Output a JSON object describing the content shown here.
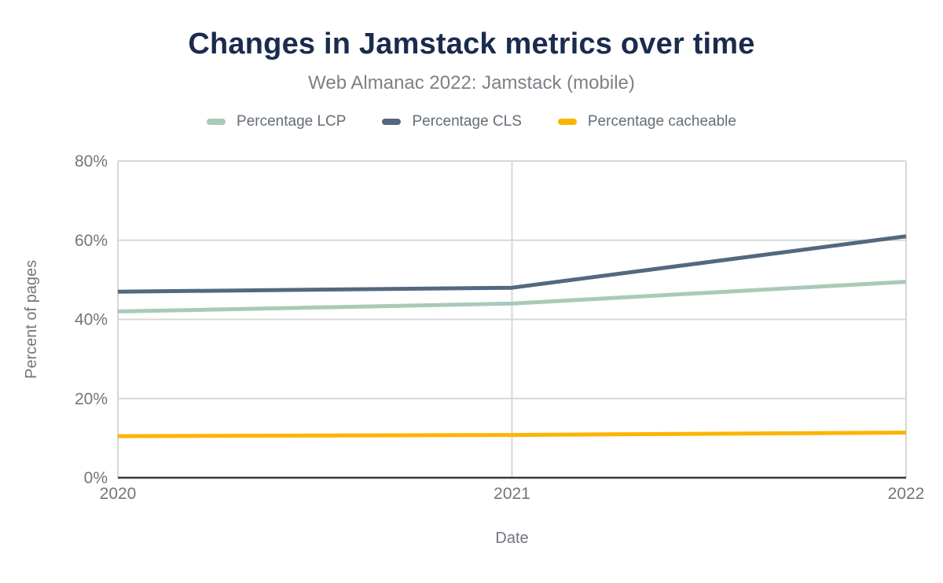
{
  "header": {
    "title": "Changes in Jamstack metrics over time",
    "subtitle": "Web Almanac 2022: Jamstack (mobile)"
  },
  "legend": {
    "items": [
      {
        "label": "Percentage LCP",
        "color": "#a9cab6"
      },
      {
        "label": "Percentage CLS",
        "color": "#54687e"
      },
      {
        "label": "Percentage cacheable",
        "color": "#fbb400"
      }
    ]
  },
  "chart_data": {
    "type": "line",
    "title": "Changes in Jamstack metrics over time",
    "subtitle": "Web Almanac 2022: Jamstack (mobile)",
    "xlabel": "Date",
    "ylabel": "Percent of pages",
    "categories": [
      "2020",
      "2021",
      "2022"
    ],
    "series": [
      {
        "name": "Percentage LCP",
        "color": "#a9cab6",
        "values": [
          42,
          44,
          49.5
        ]
      },
      {
        "name": "Percentage CLS",
        "color": "#54687e",
        "values": [
          47,
          48,
          61
        ]
      },
      {
        "name": "Percentage cacheable",
        "color": "#fbb400",
        "values": [
          10.5,
          10.8,
          11.4
        ]
      }
    ],
    "ylim": [
      0,
      80
    ],
    "yticks": [
      0,
      20,
      40,
      60,
      80
    ],
    "ytick_labels": [
      "0%",
      "20%",
      "40%",
      "60%",
      "80%"
    ],
    "grid": {
      "horizontal": true,
      "vertical_at": [
        "2021",
        "2022"
      ],
      "left_border": true
    },
    "legend_position": "top",
    "colors": {
      "gridline": "#d7d7d7",
      "baseline": "#393939",
      "axis_text": "#71767d"
    }
  }
}
